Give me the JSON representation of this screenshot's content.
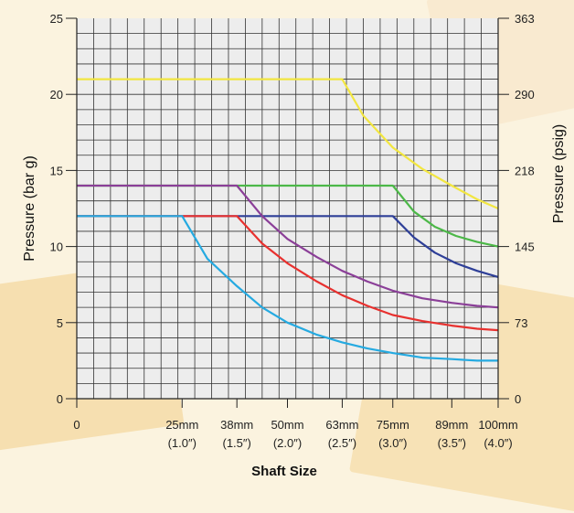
{
  "chart_data": {
    "type": "line",
    "xlabel": "Shaft Size",
    "ylabel": "Pressure (bar g)",
    "ylabel_right": "Pressure (psig)",
    "x_ticks": [
      {
        "x": 0,
        "label": "0",
        "sub": ""
      },
      {
        "x": 25,
        "label": "25mm",
        "sub": "(1.0″)"
      },
      {
        "x": 38,
        "label": "38mm",
        "sub": "(1.5″)"
      },
      {
        "x": 50,
        "label": "50mm",
        "sub": "(2.0″)"
      },
      {
        "x": 63,
        "label": "63mm",
        "sub": "(2.5″)"
      },
      {
        "x": 75,
        "label": "75mm",
        "sub": "(3.0″)"
      },
      {
        "x": 89,
        "label": "89mm",
        "sub": "(3.5″)"
      },
      {
        "x": 100,
        "label": "100mm",
        "sub": "(4.0″)"
      }
    ],
    "y_ticks": [
      0,
      5,
      10,
      15,
      20,
      25
    ],
    "y_ticks_right": [
      {
        "y": 0,
        "label": "0"
      },
      {
        "y": 5,
        "label": "73"
      },
      {
        "y": 10,
        "label": "145"
      },
      {
        "y": 15,
        "label": "218"
      },
      {
        "y": 20,
        "label": "290"
      },
      {
        "y": 25,
        "label": "363"
      }
    ],
    "ylim": [
      0,
      25
    ],
    "grid": true,
    "series": [
      {
        "color": "#f2e640",
        "points": [
          [
            0,
            21
          ],
          [
            63,
            21
          ],
          [
            68,
            18.6
          ],
          [
            75,
            16.5
          ],
          [
            82,
            15.1
          ],
          [
            89,
            14
          ],
          [
            95,
            13.1
          ],
          [
            100,
            12.5
          ]
        ]
      },
      {
        "color": "#4cb848",
        "points": [
          [
            0,
            14
          ],
          [
            75,
            14
          ],
          [
            80,
            12.3
          ],
          [
            85,
            11.3
          ],
          [
            90,
            10.7
          ],
          [
            95,
            10.3
          ],
          [
            100,
            10
          ]
        ]
      },
      {
        "color": "#2e3f98",
        "points": [
          [
            0,
            12
          ],
          [
            75,
            12
          ],
          [
            80,
            10.6
          ],
          [
            85,
            9.6
          ],
          [
            90,
            8.9
          ],
          [
            95,
            8.4
          ],
          [
            100,
            8
          ]
        ]
      },
      {
        "color": "#8b3f98",
        "points": [
          [
            0,
            14
          ],
          [
            38,
            14
          ],
          [
            44,
            12
          ],
          [
            50,
            10.5
          ],
          [
            57,
            9.3
          ],
          [
            63,
            8.4
          ],
          [
            69,
            7.7
          ],
          [
            75,
            7.1
          ],
          [
            82,
            6.6
          ],
          [
            89,
            6.3
          ],
          [
            95,
            6.1
          ],
          [
            100,
            6
          ]
        ]
      },
      {
        "color": "#e8312f",
        "points": [
          [
            0,
            12
          ],
          [
            38,
            12
          ],
          [
            44,
            10.2
          ],
          [
            50,
            8.9
          ],
          [
            57,
            7.7
          ],
          [
            63,
            6.8
          ],
          [
            69,
            6.1
          ],
          [
            75,
            5.5
          ],
          [
            82,
            5.1
          ],
          [
            89,
            4.8
          ],
          [
            95,
            4.6
          ],
          [
            100,
            4.5
          ]
        ]
      },
      {
        "color": "#25aae1",
        "points": [
          [
            0,
            12
          ],
          [
            25,
            12
          ],
          [
            31,
            9.2
          ],
          [
            38,
            7.4
          ],
          [
            44,
            6
          ],
          [
            50,
            5
          ],
          [
            57,
            4.2
          ],
          [
            63,
            3.7
          ],
          [
            69,
            3.3
          ],
          [
            75,
            3
          ],
          [
            82,
            2.7
          ],
          [
            89,
            2.6
          ],
          [
            95,
            2.5
          ],
          [
            100,
            2.5
          ]
        ]
      }
    ]
  }
}
